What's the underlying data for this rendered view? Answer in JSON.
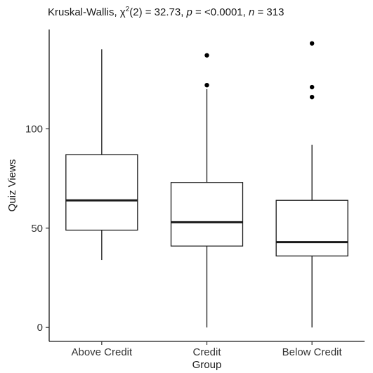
{
  "chart_data": {
    "type": "boxplot",
    "title": {
      "prefix": "Kruskal-Wallis, ",
      "stat_symbol": "χ",
      "stat_sup": "2",
      "stat_rest": "(2) = 32.73, ",
      "p_symbol": "p",
      "p_rest": " = <0.0001, ",
      "n_symbol": "n",
      "n_rest": " = 313"
    },
    "xlabel": "Group",
    "ylabel": "Quiz Views",
    "ylim": [
      -7,
      150
    ],
    "y_ticks": [
      0,
      50,
      100
    ],
    "categories": [
      "Above Credit",
      "Credit",
      "Below Credit"
    ],
    "boxes": [
      {
        "category": "Above Credit",
        "whisker_low": 34,
        "q1": 49,
        "median": 64,
        "q3": 87,
        "whisker_high": 140,
        "outliers": []
      },
      {
        "category": "Credit",
        "whisker_low": 0,
        "q1": 41,
        "median": 53,
        "q3": 73,
        "whisker_high": 120,
        "outliers": [
          122,
          137
        ]
      },
      {
        "category": "Below Credit",
        "whisker_low": 0,
        "q1": 36,
        "median": 43,
        "q3": 64,
        "whisker_high": 92,
        "outliers": [
          116,
          121,
          143
        ]
      }
    ],
    "grid": false,
    "colors": {
      "box_fill": "#ffffff",
      "box_stroke": "#1a1a1a",
      "outlier": "#000000"
    }
  }
}
